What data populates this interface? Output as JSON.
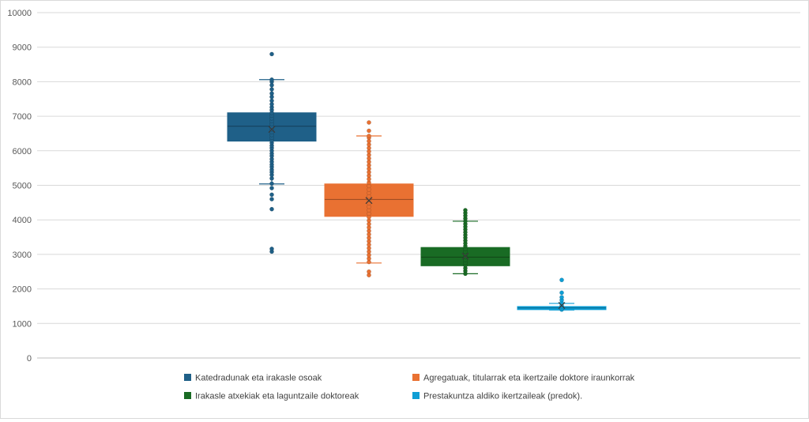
{
  "chart_data": {
    "type": "boxplot",
    "title": "",
    "xlabel": "",
    "ylabel": "",
    "ylim": [
      0,
      10000
    ],
    "yticks": [
      0,
      1000,
      2000,
      3000,
      4000,
      5000,
      6000,
      7000,
      8000,
      9000,
      10000
    ],
    "grid": true,
    "legend_position": "bottom",
    "series": [
      {
        "name": "Katedradunak eta irakasle osoak",
        "color": "#1f6088",
        "q1": 6280,
        "median": 6710,
        "q3": 7100,
        "whisker_low": 5040,
        "whisker_high": 8060,
        "mean": 6620,
        "points": [
          3080,
          3160,
          4310,
          4600,
          4730,
          4920,
          5050,
          5200,
          5300,
          5380,
          5450,
          5530,
          5600,
          5680,
          5760,
          5850,
          5920,
          6000,
          6080,
          6150,
          6230,
          6300,
          6380,
          6460,
          6540,
          6620,
          6700,
          6780,
          6860,
          6940,
          7020,
          7100,
          7180,
          7260,
          7350,
          7450,
          7560,
          7660,
          7780,
          7900,
          8000,
          8060,
          8800
        ]
      },
      {
        "name": "Agregatuak, titularrak eta ikertzaile doktore iraunkorrak",
        "color": "#e97132",
        "q1": 4100,
        "median": 4590,
        "q3": 5040,
        "whisker_low": 2750,
        "whisker_high": 6430,
        "mean": 4560,
        "points": [
          2400,
          2500,
          2780,
          2880,
          2980,
          3080,
          3180,
          3280,
          3380,
          3480,
          3580,
          3680,
          3780,
          3880,
          3980,
          4080,
          4180,
          4280,
          4380,
          4480,
          4580,
          4680,
          4780,
          4880,
          4980,
          5080,
          5180,
          5280,
          5380,
          5480,
          5580,
          5680,
          5780,
          5880,
          5980,
          6080,
          6180,
          6280,
          6380,
          6430,
          6580,
          6820
        ]
      },
      {
        "name": "Irakasle atxekiak eta laguntzaile doktoreak",
        "color": "#196b24",
        "q1": 2670,
        "median": 2920,
        "q3": 3200,
        "whisker_low": 2440,
        "whisker_high": 3960,
        "mean": 2950,
        "points": [
          2440,
          2520,
          2600,
          2680,
          2760,
          2840,
          2920,
          3000,
          3080,
          3160,
          3240,
          3320,
          3400,
          3480,
          3560,
          3640,
          3720,
          3800,
          3880,
          3960,
          4040,
          4120,
          4200,
          4280
        ]
      },
      {
        "name": "Prestakuntza aldiko ikertzaileak (predok).",
        "color": "#0f9ed5",
        "q1": 1400,
        "median": 1450,
        "q3": 1490,
        "whisker_low": 1390,
        "whisker_high": 1580,
        "mean": 1520,
        "points": [
          1400,
          1440,
          1480,
          1520,
          1600,
          1680,
          1760,
          1890,
          2260
        ]
      }
    ]
  }
}
